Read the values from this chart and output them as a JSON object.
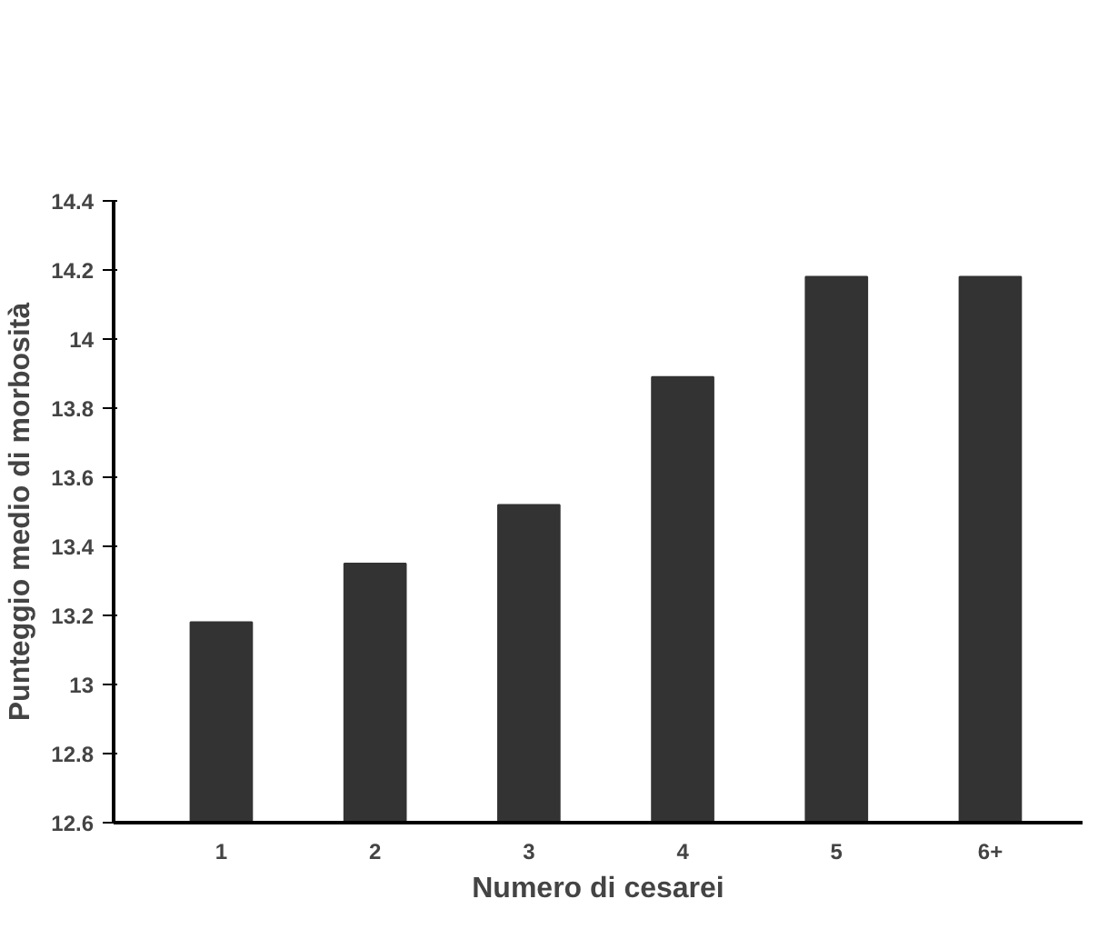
{
  "chart_data": {
    "type": "bar",
    "xlabel": "Numero di cesarei",
    "ylabel": "Punteggio medio di morbosità",
    "categories": [
      "1",
      "2",
      "3",
      "4",
      "5",
      "6+"
    ],
    "values": [
      13.18,
      13.35,
      13.52,
      13.89,
      14.18,
      14.18
    ],
    "color": "#333333",
    "ylim": [
      12.6,
      14.4
    ],
    "yticks": [
      12.6,
      12.8,
      13,
      13.2,
      13.4,
      13.6,
      13.8,
      14,
      14.2,
      14.4
    ],
    "grid": false
  }
}
